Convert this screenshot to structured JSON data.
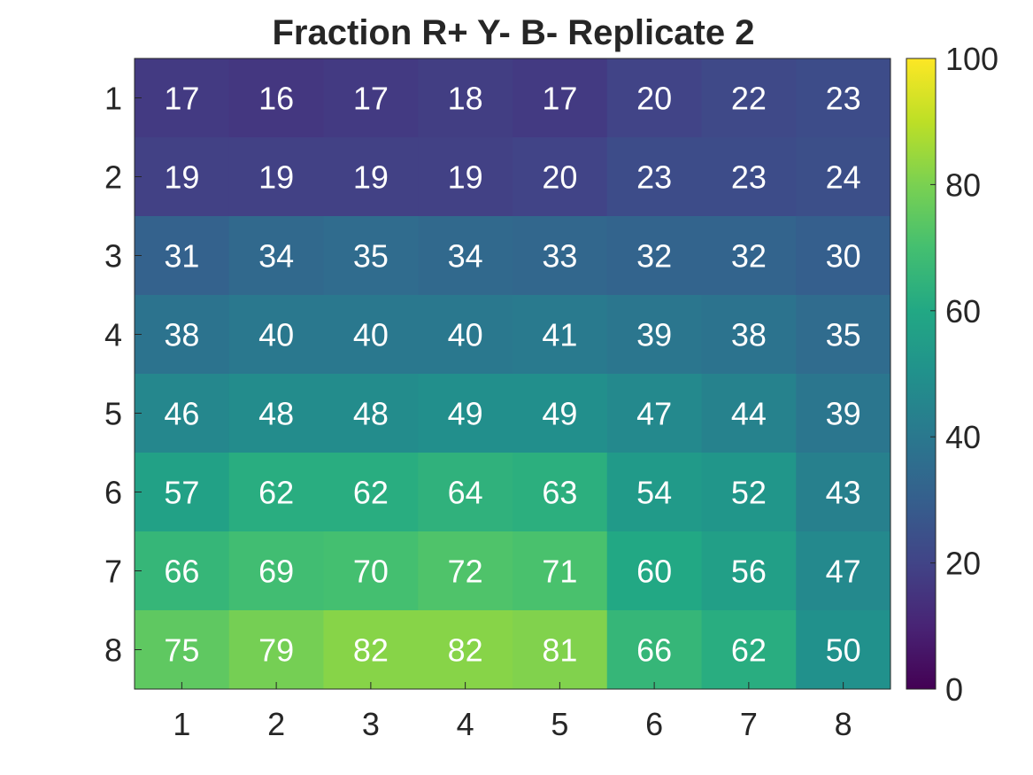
{
  "chart_data": {
    "type": "heatmap",
    "title": "Fraction R+ Y- B- Replicate 2",
    "x_tick_labels": [
      "1",
      "2",
      "3",
      "4",
      "5",
      "6",
      "7",
      "8"
    ],
    "y_tick_labels": [
      "1",
      "2",
      "3",
      "4",
      "5",
      "6",
      "7",
      "8"
    ],
    "values": [
      [
        17,
        16,
        17,
        18,
        17,
        20,
        22,
        23
      ],
      [
        19,
        19,
        19,
        19,
        20,
        23,
        23,
        24
      ],
      [
        31,
        34,
        35,
        34,
        33,
        32,
        32,
        30
      ],
      [
        38,
        40,
        40,
        40,
        41,
        39,
        38,
        35
      ],
      [
        46,
        48,
        48,
        49,
        49,
        47,
        44,
        39
      ],
      [
        57,
        62,
        62,
        64,
        63,
        54,
        52,
        43
      ],
      [
        66,
        69,
        70,
        72,
        71,
        60,
        56,
        47
      ],
      [
        75,
        79,
        82,
        82,
        81,
        66,
        62,
        50
      ]
    ],
    "colorbar": {
      "colormap": "viridis",
      "range": [
        0,
        100
      ],
      "ticks": [
        0,
        20,
        40,
        60,
        80,
        100
      ],
      "tick_labels": [
        "0",
        "20",
        "40",
        "60",
        "80",
        "100"
      ]
    }
  }
}
